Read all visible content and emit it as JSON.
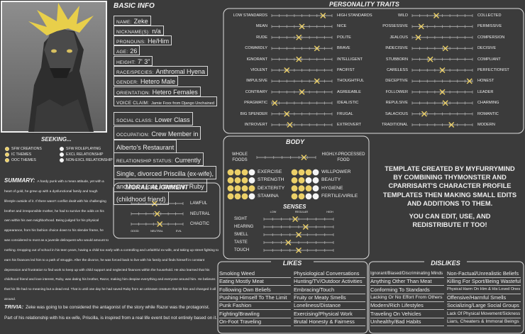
{
  "basic_info": {
    "title": "BASIC INFO",
    "fields": [
      {
        "label": "NAME:",
        "value": "Zeke"
      },
      {
        "label": "NICKNAME(S):",
        "value": "n/a"
      },
      {
        "label": "PRONOUNS:",
        "value": "He/Him"
      },
      {
        "label": "AGE:",
        "value": "26"
      },
      {
        "label": "HEIGHT:",
        "value": "7' 3\""
      },
      {
        "label": "RACE/SPECIES:",
        "value": "Anthromal Hyena"
      },
      {
        "label": "GENDER:",
        "value": "Hetero Male"
      },
      {
        "label": "ORIENTATION:",
        "value": "Hetero Females"
      },
      {
        "label": "VOICE CLAIM:",
        "value": "Jamie Foxx from Django Unchained"
      }
    ],
    "details": [
      {
        "label": "SOCIAL CLASS:",
        "value": "Lower Class"
      },
      {
        "label": "OCCUPATION:",
        "value": "Crew Member in Alberto's Restaurant"
      },
      {
        "label": "RELATIONSHIP STATUS:",
        "value": "Currently Single, divorced Priscilla (ex-wife), and has a love interest in Ruby (childhood friend)"
      }
    ]
  },
  "seeking": {
    "title": "SEEKING...",
    "options": [
      {
        "label": "SFW CREATIONS",
        "selected": true
      },
      {
        "label": "IC THEMES",
        "selected": true
      },
      {
        "label": "OOC THEMES",
        "selected": true
      },
      {
        "label": "SFW ROLEPLAYING",
        "selected": false
      },
      {
        "label": "EXCL RELATIONSHIP",
        "selected": false
      },
      {
        "label": "NON-EXCL RELATIONSHIP",
        "selected": false
      }
    ]
  },
  "summary": {
    "title": "SUMMARY:",
    "text": "A hardy punk with a mean attitude, yet with a heart of gold, he grew up with a dysfunctional family and tough lifestyle outside of it. If there wasn't conflict dealt with his challenging brother and irresponsible mother, he had to survive the odds on his own within his own neighborhood. Being judged for his physical appearance, from his fashion choice down to his slender frame, he was considered to most as a juvenile delinquent who would amount to nothing. Dropping out of school in his teen years, having a child too early with a controlling and unfaithful ex-wife, and taking up street fighting to earn his finances led him to a path of struggle. After the divorce, he was forced back to live with his family and finds himself in constant depression and frustration to find work to keep up with child support and neglected finances within the household. He also learned that his childhood friend and love interest, Ruby, was dating his brother, Razor, making him despise everything and everyone around him. He believes that his life had no meaning but a dead end. That is until one day he had saved Ruby from an unknown creature that bit him and changed it all around."
  },
  "trivia": {
    "title": "TRIVIA:",
    "text": "Zeke was going to be considered the antagonist of the story while Razor was the protagonist. Part of his relationship with his ex-wife, Priscilla, is inspired from a real life event but not entirely based on it."
  },
  "personality_traits": {
    "title": "PERSONALITY TRAITS",
    "traits": [
      {
        "low": "LOW STANDARDS",
        "high": "HIGH STANDARDS",
        "value": 0.85
      },
      {
        "low": "MEAN",
        "high": "NICE",
        "value": 0.5
      },
      {
        "low": "RUDE",
        "high": "POLITE",
        "value": 0.45
      },
      {
        "low": "COWARDLY",
        "high": "BRAVE",
        "value": 0.75
      },
      {
        "low": "IGNORANT",
        "high": "INTELLIGENT",
        "value": 0.45
      },
      {
        "low": "VIOLENT",
        "high": "PACIFIST",
        "value": 0.25
      },
      {
        "low": "IMPULSIVE",
        "high": "THOUGHTFUL",
        "value": 0.75
      },
      {
        "low": "CONTRARY",
        "high": "AGREEABLE",
        "value": 0.5
      },
      {
        "low": "PRAGMATIC",
        "high": "IDEALISTIC",
        "value": 0.05
      },
      {
        "low": "BIG SPENDER",
        "high": "FRUGAL",
        "value": 0.25
      },
      {
        "low": "INTROVERT",
        "high": "EXTROVERT",
        "value": 0.3
      },
      {
        "low": "WILD",
        "high": "COLLECTED",
        "value": 0.4
      },
      {
        "low": "POSSESSIVE",
        "high": "PERMISSIVE",
        "value": 0.15
      },
      {
        "low": "JEALOUS",
        "high": "COMPERSION",
        "value": 0.1
      },
      {
        "low": "INDECISIVE",
        "high": "DECISIVE",
        "value": 0.55
      },
      {
        "low": "STUBBORN",
        "high": "COMPLIANT",
        "value": 0.3
      },
      {
        "low": "CARELESS",
        "high": "PERFECTIONIST",
        "value": 0.5
      },
      {
        "low": "DECEPTIVE",
        "high": "HONEST",
        "value": 0.95
      },
      {
        "low": "FOLLOWER",
        "high": "LEADER",
        "value": 0.5
      },
      {
        "low": "REPULSIVE",
        "high": "CHARMING",
        "value": 0.55
      },
      {
        "low": "SALACIOUS",
        "high": "ROMANTIC",
        "value": 0.2
      },
      {
        "low": "TRADITIONAL",
        "high": "MODERN",
        "value": 0.65
      }
    ]
  },
  "body": {
    "title": "BODY",
    "food": {
      "low": "WHOLE FOODS",
      "high": "HIGHLY-PROCESSED FOOD",
      "value": 0.8
    },
    "levels": 4,
    "stats": [
      {
        "label": "EXERCISE",
        "value": 3
      },
      {
        "label": "STRENGTH",
        "value": 3
      },
      {
        "label": "DEXTERITY",
        "value": 4
      },
      {
        "label": "STAMINA",
        "value": 3
      },
      {
        "label": "WILLPOWER",
        "value": 3
      },
      {
        "label": "BEAUTY",
        "value": 2
      },
      {
        "label": "HYGIENE",
        "value": 3
      },
      {
        "label": "FERTILE/VIRILE",
        "value": 2
      }
    ]
  },
  "senses": {
    "title": "SENSES",
    "scale": [
      "LOW",
      "REGULAR",
      "HIGH"
    ],
    "items": [
      {
        "label": "SIGHT",
        "value": 0.45
      },
      {
        "label": "HEARING",
        "value": 0.6
      },
      {
        "label": "SMELL",
        "value": 0.5
      },
      {
        "label": "TASTE",
        "value": 0.35
      },
      {
        "label": "TOUCH",
        "value": 0.5
      }
    ]
  },
  "moral_alignment": {
    "title": "MORAL ALIGNMENT",
    "scale": [
      "GOOD",
      "NEUTRAL",
      "EVIL"
    ],
    "items": [
      {
        "label": "LAWFUL",
        "value": 0.45
      },
      {
        "label": "NEUTRAL",
        "value": 0.5
      },
      {
        "label": "CHAOTIC",
        "value": 0.55
      }
    ]
  },
  "template_note": {
    "credit": "TEMPLATE CREATED BY MYFURRYMIND BY COMBINING THYMONSTER AND CPARRISART'S CHARACTER PROFILE TEMPLATES THEN MAKING SMALL EDITS AND ADDITIONS TO THEM.",
    "permission": "YOU CAN EDIT, USE, AND REDISTRIBUTE IT TOO!"
  },
  "likes": {
    "title": "LIKES",
    "items": [
      "Smoking Weed",
      "Eating Mostly Meat",
      "Following Own Beliefs",
      "Pushing Himself To The Limit",
      "Punk Fashion",
      "Fighting/Brawling",
      "On-Foot Traveling",
      "Physiological Conversations",
      "Hunting/TV/Outdoor Activities",
      "Embracing/Touch",
      "Fruity or Meaty Smells",
      "Loneliness/Distance",
      "Exercising/Physical Work",
      "Brutal Honesty & Fairness"
    ]
  },
  "dislikes": {
    "title": "DISLIKES",
    "items": [
      "Ignorant/Biased/Discriminating Minds",
      "Anything Other Than Meat",
      "Conforming To Standards",
      "Lacking Or No Effort From Others",
      "Modern/Rich Lifestyles",
      "Traveling On Vehicles",
      "Unhealthy/Bad Habits",
      "Non-Factual/Unrealistic Beliefs",
      "Killing For Sport/Being Wasteful",
      "Physical Harm On Him & His Loved Ones",
      "Offensive/Harmful Smells",
      "Socializing/Large Social Groups",
      "Lack Of Physical Movement/Sickness",
      "Liars, Cheaters & Immoral Beings"
    ]
  }
}
